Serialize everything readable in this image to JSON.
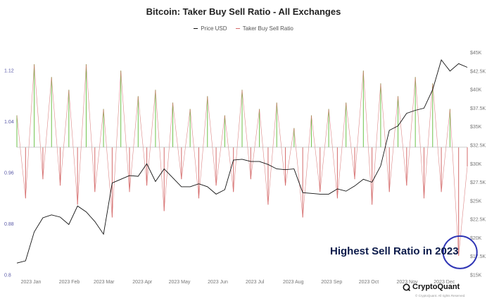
{
  "chart_data": {
    "type": "line",
    "title": "Bitcoin: Taker Buy Sell Ratio - All Exchanges",
    "legend": {
      "placement": "top-center",
      "entries": [
        "Price USD",
        "Taker Buy Sell Ratio"
      ]
    },
    "x_ticks": [
      "2023 Jan",
      "2023 Feb",
      "2023 Mar",
      "2023 Apr",
      "2023 May",
      "2023 Jun",
      "2023 Jul",
      "2023 Aug",
      "2023 Sep",
      "2023 Oct",
      "2023 Nov",
      "2023 Dec"
    ],
    "y_left_ticks": [
      "1.12",
      "1.04",
      "0.96",
      "0.88",
      "0.8"
    ],
    "y_left_range": [
      0.8,
      1.16
    ],
    "y_right_ticks": [
      "$45K",
      "$42.5K",
      "$40K",
      "$37.5K",
      "$35K",
      "$32.5K",
      "$30K",
      "$27.5K",
      "$25K",
      "$22.5K",
      "$20K",
      "$17.5K",
      "$15K"
    ],
    "y_right_range": [
      15000,
      46000
    ],
    "grid": false,
    "baseline_ratio": 1.0,
    "colors": {
      "buy": "#6cc24a",
      "sell": "#d46a6a",
      "price": "#111111",
      "annotation_circle": "#2f35b5"
    },
    "series": [
      {
        "name": "Price USD",
        "axis": "right",
        "x": [
          "2023-01-01",
          "2023-01-08",
          "2023-01-15",
          "2023-01-22",
          "2023-01-29",
          "2023-02-05",
          "2023-02-12",
          "2023-02-19",
          "2023-02-26",
          "2023-03-05",
          "2023-03-12",
          "2023-03-19",
          "2023-03-26",
          "2023-04-02",
          "2023-04-09",
          "2023-04-16",
          "2023-04-23",
          "2023-04-30",
          "2023-05-07",
          "2023-05-14",
          "2023-05-21",
          "2023-05-28",
          "2023-06-04",
          "2023-06-11",
          "2023-06-18",
          "2023-06-25",
          "2023-07-02",
          "2023-07-09",
          "2023-07-16",
          "2023-07-23",
          "2023-07-30",
          "2023-08-06",
          "2023-08-13",
          "2023-08-20",
          "2023-08-27",
          "2023-09-03",
          "2023-09-10",
          "2023-09-17",
          "2023-09-24",
          "2023-10-01",
          "2023-10-08",
          "2023-10-15",
          "2023-10-22",
          "2023-10-29",
          "2023-11-05",
          "2023-11-12",
          "2023-11-19",
          "2023-11-26",
          "2023-12-03",
          "2023-12-10",
          "2023-12-17",
          "2023-12-24",
          "2023-12-31"
        ],
        "values": [
          16600,
          16900,
          20800,
          22700,
          23100,
          22800,
          21800,
          24300,
          23500,
          22200,
          20500,
          27400,
          27900,
          28400,
          28300,
          30000,
          27600,
          29300,
          28100,
          26900,
          26900,
          27300,
          26900,
          25900,
          26500,
          30500,
          30600,
          30300,
          30300,
          29900,
          29300,
          29200,
          29300,
          26100,
          26000,
          25900,
          25900,
          26600,
          26300,
          27000,
          27900,
          27500,
          29700,
          34500,
          35100,
          36800,
          37200,
          37500,
          40000,
          44000,
          42500,
          43500,
          43000
        ]
      },
      {
        "name": "Taker Buy Sell Ratio",
        "axis": "left",
        "x": [
          "2023-01-01",
          "2023-01-08",
          "2023-01-15",
          "2023-01-22",
          "2023-01-29",
          "2023-02-05",
          "2023-02-12",
          "2023-02-19",
          "2023-02-26",
          "2023-03-05",
          "2023-03-12",
          "2023-03-19",
          "2023-03-26",
          "2023-04-02",
          "2023-04-09",
          "2023-04-16",
          "2023-04-23",
          "2023-04-30",
          "2023-05-07",
          "2023-05-14",
          "2023-05-21",
          "2023-05-28",
          "2023-06-04",
          "2023-06-11",
          "2023-06-18",
          "2023-06-25",
          "2023-07-02",
          "2023-07-09",
          "2023-07-16",
          "2023-07-23",
          "2023-07-30",
          "2023-08-06",
          "2023-08-13",
          "2023-08-20",
          "2023-08-27",
          "2023-09-03",
          "2023-09-10",
          "2023-09-17",
          "2023-09-24",
          "2023-10-01",
          "2023-10-08",
          "2023-10-15",
          "2023-10-22",
          "2023-10-29",
          "2023-11-05",
          "2023-11-12",
          "2023-11-19",
          "2023-11-26",
          "2023-12-03",
          "2023-12-10",
          "2023-12-17",
          "2023-12-24",
          "2023-12-31"
        ],
        "values": [
          1.05,
          0.92,
          1.13,
          0.95,
          1.11,
          0.94,
          1.09,
          0.91,
          1.13,
          0.93,
          1.06,
          0.89,
          1.12,
          0.93,
          1.08,
          0.94,
          1.09,
          0.9,
          1.07,
          0.95,
          1.06,
          0.92,
          1.08,
          0.94,
          1.05,
          0.93,
          1.09,
          0.95,
          1.06,
          0.91,
          1.07,
          0.94,
          1.03,
          0.89,
          1.05,
          0.93,
          1.06,
          0.92,
          1.07,
          0.95,
          1.12,
          0.91,
          1.1,
          0.93,
          1.08,
          0.94,
          1.11,
          0.92,
          1.1,
          0.93,
          1.06,
          0.83,
          0.97
        ]
      }
    ],
    "annotation": "Highest Sell Ratio in 2023",
    "watermark": "CryptoQuant",
    "copyright": "© CryptoQuant. All rights Reserved."
  }
}
